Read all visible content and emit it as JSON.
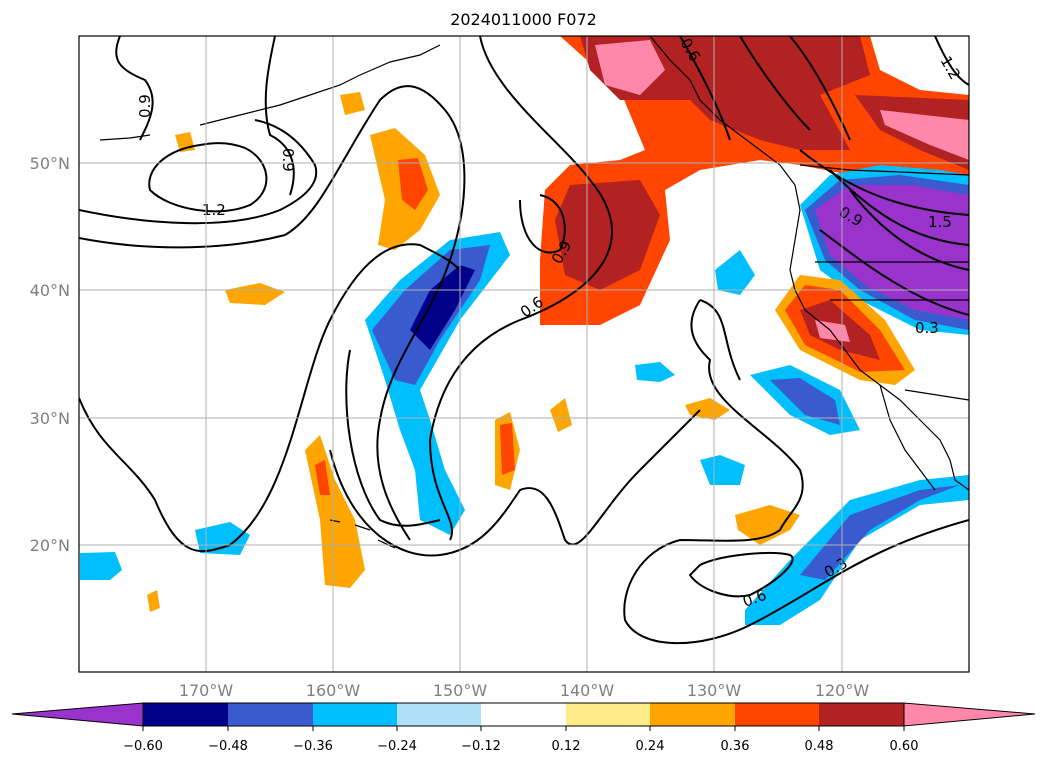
{
  "title": "2024011000 F072",
  "map": {
    "projection": "plate-carree",
    "lon_range": [
      -180,
      -110
    ],
    "lat_range": [
      10,
      60
    ],
    "gridlines": true,
    "lon_ticks": [
      "170°W",
      "160°W",
      "150°W",
      "140°W",
      "130°W",
      "120°W"
    ],
    "lat_ticks": [
      "50°N",
      "40°N",
      "30°N",
      "20°N"
    ],
    "contour_labels": [
      "0.9",
      "0.9",
      "1.2",
      "0.9",
      "0.6",
      "0.6",
      "0.3",
      "0.9",
      "1.5",
      "0.3",
      "0.6",
      "1.2"
    ]
  },
  "colorbar": {
    "ticks": [
      "−0.60",
      "−0.48",
      "−0.36",
      "−0.24",
      "−0.12",
      "0.12",
      "0.24",
      "0.36",
      "0.48",
      "0.60"
    ],
    "colors": [
      "#9933cc",
      "#00008b",
      "#3a5bcf",
      "#00bfff",
      "#b0e0f8",
      "#ffffff",
      "#ffeb8a",
      "#ffa500",
      "#ff4500",
      "#b22222",
      "#ff88aa"
    ],
    "extend": "both"
  }
}
